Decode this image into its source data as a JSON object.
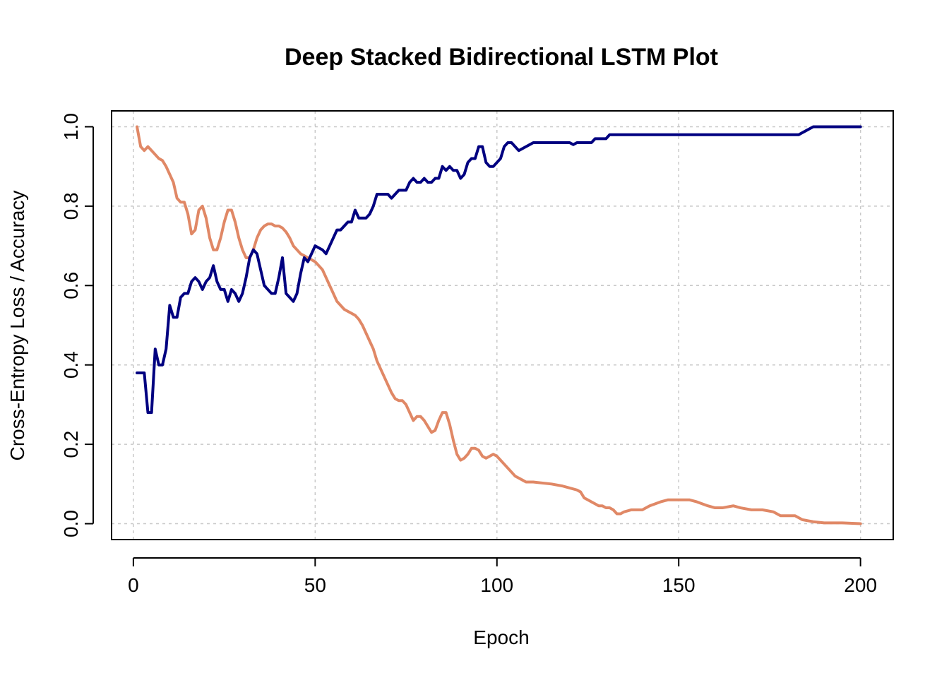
{
  "chart_data": {
    "type": "line",
    "title": "Deep Stacked Bidirectional LSTM Plot",
    "xlabel": "Epoch",
    "ylabel": "Cross-Entropy Loss / Accuracy",
    "xlim": [
      -6,
      209
    ],
    "ylim": [
      -0.04,
      1.04
    ],
    "x_ticks": [
      0,
      50,
      100,
      150,
      200
    ],
    "x_tick_labels": [
      "0",
      "50",
      "100",
      "150",
      "200"
    ],
    "y_ticks": [
      0.0,
      0.2,
      0.4,
      0.6,
      0.8,
      1.0
    ],
    "y_tick_labels": [
      "0.0",
      "0.2",
      "0.4",
      "0.6",
      "0.8",
      "1.0"
    ],
    "grid": true,
    "series": [
      {
        "name": "Accuracy",
        "color": "#000080",
        "points": [
          [
            1,
            0.38
          ],
          [
            3,
            0.38
          ],
          [
            4,
            0.28
          ],
          [
            5,
            0.28
          ],
          [
            6,
            0.44
          ],
          [
            7,
            0.4
          ],
          [
            8,
            0.4
          ],
          [
            9,
            0.44
          ],
          [
            10,
            0.55
          ],
          [
            11,
            0.52
          ],
          [
            12,
            0.52
          ],
          [
            13,
            0.57
          ],
          [
            14,
            0.58
          ],
          [
            15,
            0.58
          ],
          [
            16,
            0.61
          ],
          [
            17,
            0.62
          ],
          [
            18,
            0.61
          ],
          [
            19,
            0.59
          ],
          [
            20,
            0.61
          ],
          [
            21,
            0.62
          ],
          [
            22,
            0.65
          ],
          [
            23,
            0.61
          ],
          [
            24,
            0.59
          ],
          [
            25,
            0.59
          ],
          [
            26,
            0.56
          ],
          [
            27,
            0.59
          ],
          [
            28,
            0.58
          ],
          [
            29,
            0.56
          ],
          [
            30,
            0.58
          ],
          [
            31,
            0.62
          ],
          [
            32,
            0.67
          ],
          [
            33,
            0.69
          ],
          [
            34,
            0.68
          ],
          [
            35,
            0.64
          ],
          [
            36,
            0.6
          ],
          [
            37,
            0.59
          ],
          [
            38,
            0.58
          ],
          [
            39,
            0.58
          ],
          [
            40,
            0.62
          ],
          [
            41,
            0.67
          ],
          [
            42,
            0.58
          ],
          [
            43,
            0.57
          ],
          [
            44,
            0.56
          ],
          [
            45,
            0.58
          ],
          [
            46,
            0.63
          ],
          [
            47,
            0.67
          ],
          [
            48,
            0.66
          ],
          [
            49,
            0.68
          ],
          [
            50,
            0.7
          ],
          [
            52,
            0.69
          ],
          [
            53,
            0.68
          ],
          [
            54,
            0.7
          ],
          [
            55,
            0.72
          ],
          [
            56,
            0.74
          ],
          [
            57,
            0.74
          ],
          [
            58,
            0.75
          ],
          [
            59,
            0.76
          ],
          [
            60,
            0.76
          ],
          [
            61,
            0.79
          ],
          [
            62,
            0.77
          ],
          [
            63,
            0.77
          ],
          [
            64,
            0.77
          ],
          [
            65,
            0.78
          ],
          [
            66,
            0.8
          ],
          [
            67,
            0.83
          ],
          [
            68,
            0.83
          ],
          [
            69,
            0.83
          ],
          [
            70,
            0.83
          ],
          [
            71,
            0.82
          ],
          [
            72,
            0.83
          ],
          [
            73,
            0.84
          ],
          [
            74,
            0.84
          ],
          [
            75,
            0.84
          ],
          [
            76,
            0.86
          ],
          [
            77,
            0.87
          ],
          [
            78,
            0.86
          ],
          [
            79,
            0.86
          ],
          [
            80,
            0.87
          ],
          [
            81,
            0.86
          ],
          [
            82,
            0.86
          ],
          [
            83,
            0.87
          ],
          [
            84,
            0.87
          ],
          [
            85,
            0.9
          ],
          [
            86,
            0.89
          ],
          [
            87,
            0.9
          ],
          [
            88,
            0.89
          ],
          [
            89,
            0.89
          ],
          [
            90,
            0.87
          ],
          [
            91,
            0.88
          ],
          [
            92,
            0.91
          ],
          [
            93,
            0.92
          ],
          [
            94,
            0.92
          ],
          [
            95,
            0.95
          ],
          [
            96,
            0.95
          ],
          [
            97,
            0.91
          ],
          [
            98,
            0.9
          ],
          [
            99,
            0.9
          ],
          [
            100,
            0.91
          ],
          [
            101,
            0.92
          ],
          [
            102,
            0.95
          ],
          [
            103,
            0.96
          ],
          [
            104,
            0.96
          ],
          [
            105,
            0.95
          ],
          [
            106,
            0.94
          ],
          [
            108,
            0.95
          ],
          [
            110,
            0.96
          ],
          [
            120,
            0.96
          ],
          [
            121,
            0.955
          ],
          [
            122,
            0.96
          ],
          [
            126,
            0.96
          ],
          [
            127,
            0.97
          ],
          [
            130,
            0.97
          ],
          [
            131,
            0.98
          ],
          [
            183,
            0.98
          ],
          [
            184,
            0.985
          ],
          [
            187,
            1.0
          ],
          [
            200,
            1.0
          ]
        ]
      },
      {
        "name": "Cross-Entropy Loss",
        "color": "#e08866",
        "points": [
          [
            1,
            1.0
          ],
          [
            2,
            0.95
          ],
          [
            3,
            0.94
          ],
          [
            4,
            0.95
          ],
          [
            5,
            0.94
          ],
          [
            6,
            0.93
          ],
          [
            7,
            0.92
          ],
          [
            8,
            0.915
          ],
          [
            9,
            0.9
          ],
          [
            10,
            0.88
          ],
          [
            11,
            0.86
          ],
          [
            12,
            0.82
          ],
          [
            13,
            0.81
          ],
          [
            14,
            0.81
          ],
          [
            15,
            0.78
          ],
          [
            16,
            0.73
          ],
          [
            17,
            0.74
          ],
          [
            18,
            0.79
          ],
          [
            19,
            0.8
          ],
          [
            20,
            0.77
          ],
          [
            21,
            0.72
          ],
          [
            22,
            0.69
          ],
          [
            23,
            0.69
          ],
          [
            24,
            0.72
          ],
          [
            25,
            0.76
          ],
          [
            26,
            0.79
          ],
          [
            27,
            0.79
          ],
          [
            28,
            0.76
          ],
          [
            29,
            0.72
          ],
          [
            30,
            0.69
          ],
          [
            31,
            0.67
          ],
          [
            32,
            0.67
          ],
          [
            33,
            0.69
          ],
          [
            34,
            0.72
          ],
          [
            35,
            0.74
          ],
          [
            36,
            0.75
          ],
          [
            37,
            0.755
          ],
          [
            38,
            0.755
          ],
          [
            39,
            0.75
          ],
          [
            40,
            0.75
          ],
          [
            41,
            0.745
          ],
          [
            42,
            0.735
          ],
          [
            43,
            0.72
          ],
          [
            44,
            0.7
          ],
          [
            45,
            0.69
          ],
          [
            46,
            0.68
          ],
          [
            47,
            0.675
          ],
          [
            48,
            0.67
          ],
          [
            49,
            0.665
          ],
          [
            50,
            0.66
          ],
          [
            51,
            0.65
          ],
          [
            52,
            0.64
          ],
          [
            53,
            0.62
          ],
          [
            54,
            0.6
          ],
          [
            55,
            0.58
          ],
          [
            56,
            0.56
          ],
          [
            57,
            0.55
          ],
          [
            58,
            0.54
          ],
          [
            59,
            0.535
          ],
          [
            60,
            0.53
          ],
          [
            61,
            0.525
          ],
          [
            62,
            0.515
          ],
          [
            63,
            0.5
          ],
          [
            64,
            0.48
          ],
          [
            65,
            0.46
          ],
          [
            66,
            0.44
          ],
          [
            67,
            0.41
          ],
          [
            68,
            0.39
          ],
          [
            69,
            0.37
          ],
          [
            70,
            0.35
          ],
          [
            71,
            0.33
          ],
          [
            72,
            0.315
          ],
          [
            73,
            0.31
          ],
          [
            74,
            0.31
          ],
          [
            75,
            0.3
          ],
          [
            76,
            0.28
          ],
          [
            77,
            0.26
          ],
          [
            78,
            0.27
          ],
          [
            79,
            0.27
          ],
          [
            80,
            0.26
          ],
          [
            81,
            0.245
          ],
          [
            82,
            0.23
          ],
          [
            83,
            0.235
          ],
          [
            84,
            0.26
          ],
          [
            85,
            0.28
          ],
          [
            86,
            0.28
          ],
          [
            87,
            0.25
          ],
          [
            88,
            0.21
          ],
          [
            89,
            0.175
          ],
          [
            90,
            0.16
          ],
          [
            91,
            0.165
          ],
          [
            92,
            0.175
          ],
          [
            93,
            0.19
          ],
          [
            94,
            0.19
          ],
          [
            95,
            0.185
          ],
          [
            96,
            0.17
          ],
          [
            97,
            0.165
          ],
          [
            98,
            0.17
          ],
          [
            99,
            0.175
          ],
          [
            100,
            0.17
          ],
          [
            101,
            0.16
          ],
          [
            102,
            0.15
          ],
          [
            103,
            0.14
          ],
          [
            104,
            0.13
          ],
          [
            105,
            0.12
          ],
          [
            106,
            0.115
          ],
          [
            107,
            0.11
          ],
          [
            108,
            0.105
          ],
          [
            110,
            0.105
          ],
          [
            115,
            0.1
          ],
          [
            118,
            0.095
          ],
          [
            120,
            0.09
          ],
          [
            122,
            0.085
          ],
          [
            123,
            0.08
          ],
          [
            124,
            0.065
          ],
          [
            125,
            0.06
          ],
          [
            126,
            0.055
          ],
          [
            127,
            0.05
          ],
          [
            128,
            0.045
          ],
          [
            129,
            0.045
          ],
          [
            130,
            0.04
          ],
          [
            131,
            0.04
          ],
          [
            132,
            0.035
          ],
          [
            133,
            0.025
          ],
          [
            134,
            0.025
          ],
          [
            135,
            0.03
          ],
          [
            137,
            0.035
          ],
          [
            140,
            0.035
          ],
          [
            142,
            0.045
          ],
          [
            145,
            0.055
          ],
          [
            147,
            0.06
          ],
          [
            150,
            0.06
          ],
          [
            153,
            0.06
          ],
          [
            155,
            0.055
          ],
          [
            158,
            0.045
          ],
          [
            160,
            0.04
          ],
          [
            162,
            0.04
          ],
          [
            165,
            0.045
          ],
          [
            167,
            0.04
          ],
          [
            170,
            0.035
          ],
          [
            173,
            0.035
          ],
          [
            176,
            0.03
          ],
          [
            178,
            0.02
          ],
          [
            180,
            0.02
          ],
          [
            182,
            0.02
          ],
          [
            184,
            0.01
          ],
          [
            187,
            0.005
          ],
          [
            190,
            0.002
          ],
          [
            195,
            0.002
          ],
          [
            200,
            0.0
          ]
        ]
      }
    ]
  }
}
